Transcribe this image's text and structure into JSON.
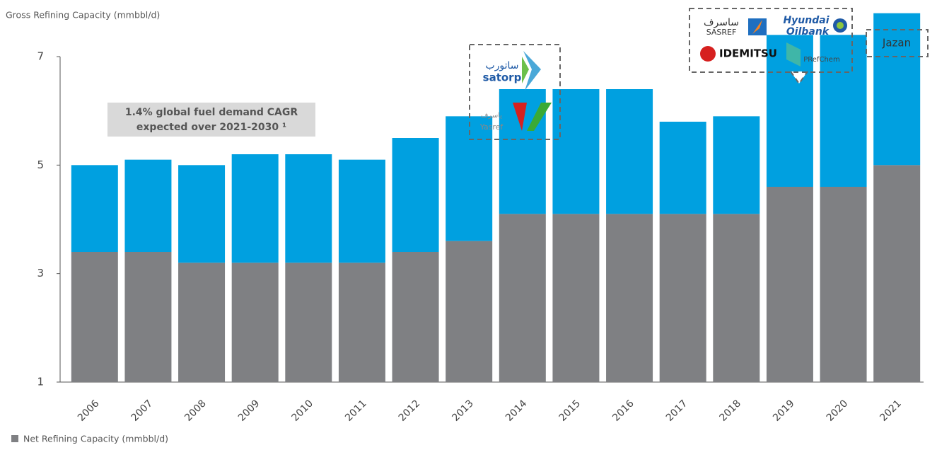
{
  "chart_data": {
    "type": "stacked_bar",
    "y_axis_label": "Gross Refining Capacity (mmbbl/d)",
    "categories": [
      "2006",
      "2007",
      "2008",
      "2009",
      "2010",
      "2011",
      "2012",
      "2013",
      "2014",
      "2015",
      "2016",
      "2017",
      "2018",
      "2019",
      "2020",
      "2021"
    ],
    "series": [
      {
        "name": "Net Refining Capacity (mmbbl/d)",
        "color": "#7f8083",
        "values": [
          2.4,
          2.4,
          2.2,
          2.2,
          2.2,
          2.2,
          2.4,
          2.6,
          3.1,
          3.1,
          3.1,
          3.1,
          3.1,
          3.6,
          3.6,
          4.0
        ]
      },
      {
        "color": "#00a0e0",
        "values": [
          1.6,
          1.7,
          1.8,
          2.0,
          2.0,
          1.9,
          2.1,
          2.3,
          2.3,
          2.3,
          2.3,
          1.7,
          1.8,
          2.8,
          2.8,
          2.8
        ]
      }
    ],
    "ylim": [
      1,
      7
    ],
    "yticks": [
      1,
      3,
      5,
      7
    ],
    "legend": "bottom-left",
    "annotation": [
      "1.4% global fuel demand CAGR",
      "expected over 2021-2030 ¹"
    ],
    "logos": {
      "box_2014": [
        "ساتورب",
        "satorp",
        "ياسرف",
        "Yasref"
      ],
      "box_2019": [
        "ساسرف",
        "SASREF",
        "Hyundai",
        "Oilbank",
        "IDEMITSU",
        "PRefChem"
      ],
      "box_2021": [
        "Jazan"
      ]
    }
  }
}
